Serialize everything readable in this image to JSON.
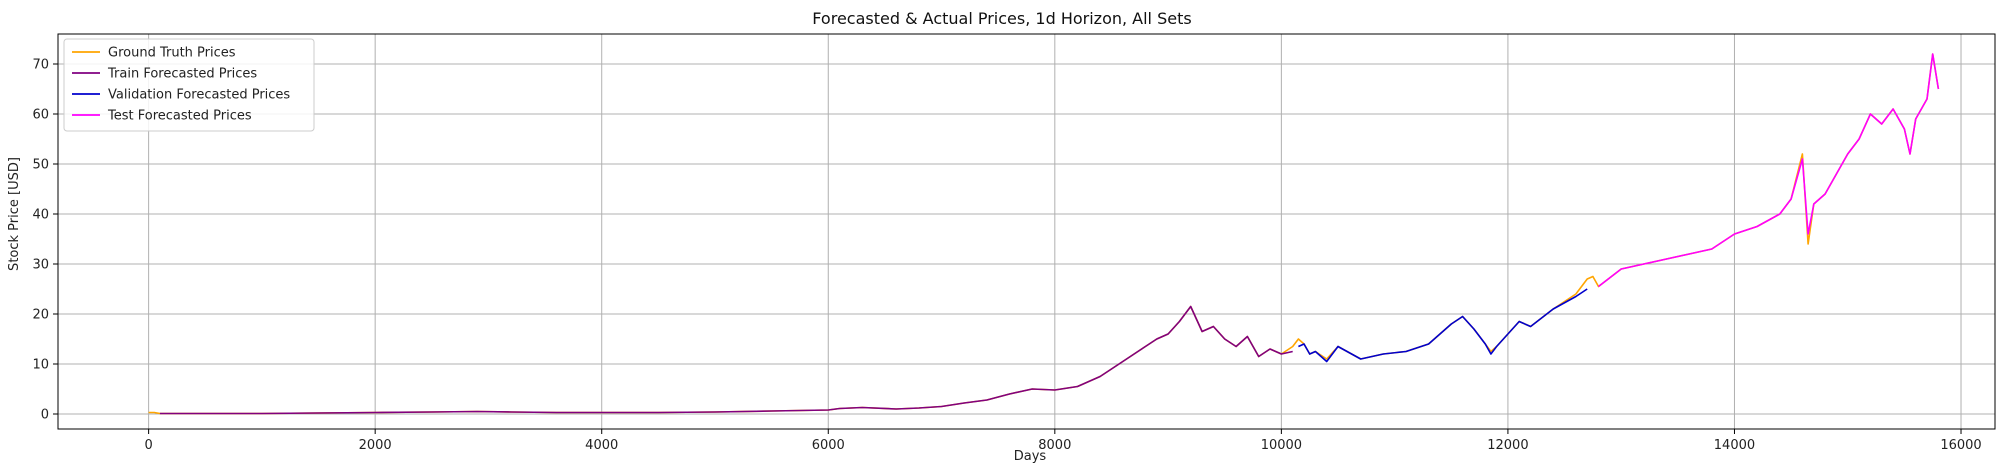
{
  "chart_data": {
    "type": "line",
    "title": "Forecasted & Actual Prices, 1d Horizon, All Sets",
    "xlabel": "Days",
    "ylabel": "Stock Price [USD]",
    "xlim": [
      -800,
      16300
    ],
    "ylim": [
      -3,
      76
    ],
    "xticks": [
      0,
      2000,
      4000,
      6000,
      8000,
      10000,
      12000,
      14000,
      16000
    ],
    "yticks": [
      0,
      10,
      20,
      30,
      40,
      50,
      60,
      70
    ],
    "grid": true,
    "legend_position": "top-left",
    "colors": {
      "ground_truth": "#ffa500",
      "train": "#800080",
      "validation": "#0000cd",
      "test": "#ff00ff"
    },
    "series": [
      {
        "name": "Ground Truth Prices",
        "key": "ground_truth",
        "x": [
          0,
          50,
          100,
          500,
          1000,
          1500,
          2000,
          2500,
          2900,
          3200,
          3600,
          4000,
          4500,
          5000,
          5500,
          6000,
          6100,
          6300,
          6600,
          6800,
          7000,
          7200,
          7400,
          7600,
          7800,
          8000,
          8200,
          8400,
          8600,
          8800,
          8900,
          9000,
          9100,
          9200,
          9250,
          9300,
          9400,
          9500,
          9600,
          9700,
          9800,
          9900,
          10000,
          10100,
          10150,
          10200,
          10250,
          10300,
          10400,
          10500,
          10700,
          10900,
          11100,
          11300,
          11500,
          11600,
          11700,
          11800,
          11850,
          11900,
          12000,
          12100,
          12200,
          12400,
          12600,
          12700,
          12750,
          12800,
          13000,
          13200,
          13400,
          13600,
          13800,
          14000,
          14200,
          14400,
          14500,
          14600,
          14650,
          14700,
          14800,
          14900,
          15000,
          15100,
          15200,
          15300,
          15400,
          15500,
          15550,
          15600,
          15700,
          15750,
          15800
        ],
        "y": [
          0.3,
          0.3,
          0.1,
          0.1,
          0.1,
          0.2,
          0.3,
          0.4,
          0.5,
          0.4,
          0.3,
          0.3,
          0.3,
          0.4,
          0.6,
          0.8,
          1.1,
          1.3,
          1.0,
          1.2,
          1.5,
          2.2,
          2.8,
          4.0,
          5.0,
          4.8,
          5.5,
          7.5,
          10.5,
          13.5,
          15.0,
          16.0,
          18.5,
          21.5,
          19.0,
          16.5,
          17.5,
          15.0,
          13.5,
          15.5,
          11.5,
          13.0,
          12.0,
          13.5,
          15.0,
          14.0,
          12.0,
          12.5,
          11.0,
          13.5,
          11.0,
          12.0,
          12.5,
          14.0,
          18.0,
          19.5,
          17.0,
          14.0,
          12.5,
          13.5,
          16.0,
          18.5,
          17.5,
          21.0,
          24.0,
          27.0,
          27.5,
          25.5,
          29.0,
          30.0,
          31.0,
          32.0,
          33.0,
          36.0,
          37.5,
          40.0,
          43.0,
          52.0,
          34.0,
          42.0,
          44.0,
          48.0,
          52.0,
          55.0,
          60.0,
          58.0,
          61.0,
          57.0,
          52.0,
          59.0,
          63.0,
          72.0,
          65.0
        ]
      },
      {
        "name": "Train Forecasted Prices",
        "key": "train",
        "x": [
          100,
          500,
          1000,
          1500,
          2000,
          2500,
          2900,
          3200,
          3600,
          4000,
          4500,
          5000,
          5500,
          6000,
          6100,
          6300,
          6600,
          6800,
          7000,
          7200,
          7400,
          7600,
          7800,
          8000,
          8200,
          8400,
          8600,
          8800,
          8900,
          9000,
          9100,
          9200,
          9250,
          9300,
          9400,
          9500,
          9600,
          9700,
          9800,
          9900,
          10000,
          10100
        ],
        "y": [
          0.1,
          0.1,
          0.1,
          0.2,
          0.3,
          0.4,
          0.5,
          0.4,
          0.3,
          0.3,
          0.3,
          0.4,
          0.6,
          0.8,
          1.1,
          1.3,
          1.0,
          1.2,
          1.5,
          2.2,
          2.8,
          4.0,
          5.0,
          4.8,
          5.5,
          7.5,
          10.5,
          13.5,
          15.0,
          16.0,
          18.5,
          21.5,
          19.0,
          16.5,
          17.5,
          15.0,
          13.5,
          15.5,
          11.5,
          13.0,
          12.0,
          12.5
        ]
      },
      {
        "name": "Validation Forecasted Prices",
        "key": "validation",
        "x": [
          10150,
          10200,
          10250,
          10300,
          10400,
          10500,
          10700,
          10900,
          11100,
          11300,
          11500,
          11600,
          11700,
          11800,
          11850,
          11900,
          12000,
          12100,
          12200,
          12400,
          12600,
          12700
        ],
        "y": [
          13.5,
          14.0,
          12.0,
          12.5,
          10.5,
          13.5,
          11.0,
          12.0,
          12.5,
          14.0,
          18.0,
          19.5,
          17.0,
          14.0,
          12.0,
          13.5,
          16.0,
          18.5,
          17.5,
          21.0,
          23.5,
          25.0
        ]
      },
      {
        "name": "Test Forecasted Prices",
        "key": "test",
        "x": [
          12800,
          13000,
          13200,
          13400,
          13600,
          13800,
          14000,
          14200,
          14400,
          14500,
          14600,
          14650,
          14700,
          14800,
          14900,
          15000,
          15100,
          15200,
          15300,
          15400,
          15500,
          15550,
          15600,
          15700,
          15750,
          15800
        ],
        "y": [
          25.5,
          29.0,
          30.0,
          31.0,
          32.0,
          33.0,
          36.0,
          37.5,
          40.0,
          43.0,
          51.0,
          36.0,
          42.0,
          44.0,
          48.0,
          52.0,
          55.0,
          60.0,
          58.0,
          61.0,
          57.0,
          52.0,
          59.0,
          63.0,
          72.0,
          65.0
        ]
      }
    ]
  }
}
